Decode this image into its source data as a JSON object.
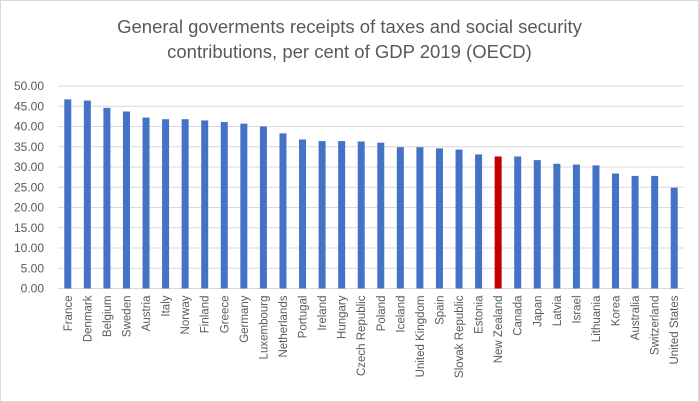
{
  "chart_data": {
    "type": "bar",
    "title_line1": "General goverments receipts of taxes and social security",
    "title_line2": "contributions, per cent of GDP  2019  (OECD)",
    "xlabel": "",
    "ylabel": "",
    "ylim": [
      0,
      50
    ],
    "yticks": [
      "0.00",
      "5.00",
      "10.00",
      "15.00",
      "20.00",
      "25.00",
      "30.00",
      "35.00",
      "40.00",
      "45.00",
      "50.00"
    ],
    "grid": true,
    "legend": "none",
    "categories": [
      "France",
      "Denmark",
      "Belgium",
      "Sweden",
      "Austria",
      "Italy",
      "Norway",
      "Finland",
      "Greece",
      "Germany",
      "Luxembourg",
      "Netherlands",
      "Portugal",
      "Ireland",
      "Hungary",
      "Czech Republic",
      "Poland",
      "Iceland",
      "United Kingdom",
      "Spain",
      "Slovak Republic",
      "Estonia",
      "New Zealand",
      "Canada",
      "Japan",
      "Latvia",
      "Israel",
      "Lithuania",
      "Korea",
      "Australia",
      "Switzerland",
      "United States"
    ],
    "values": [
      46.7,
      46.4,
      44.6,
      43.7,
      42.2,
      41.8,
      41.8,
      41.5,
      41.1,
      40.7,
      40.0,
      38.3,
      36.8,
      36.4,
      36.4,
      36.3,
      36.0,
      34.9,
      34.9,
      34.6,
      34.3,
      33.1,
      32.6,
      32.6,
      31.7,
      30.8,
      30.6,
      30.4,
      28.4,
      27.8,
      27.8,
      24.9
    ],
    "highlight": "New Zealand",
    "colors": {
      "bar": "#4472c4",
      "highlight": "#c00000",
      "grid": "#d9d9d9",
      "text": "#595959"
    }
  }
}
